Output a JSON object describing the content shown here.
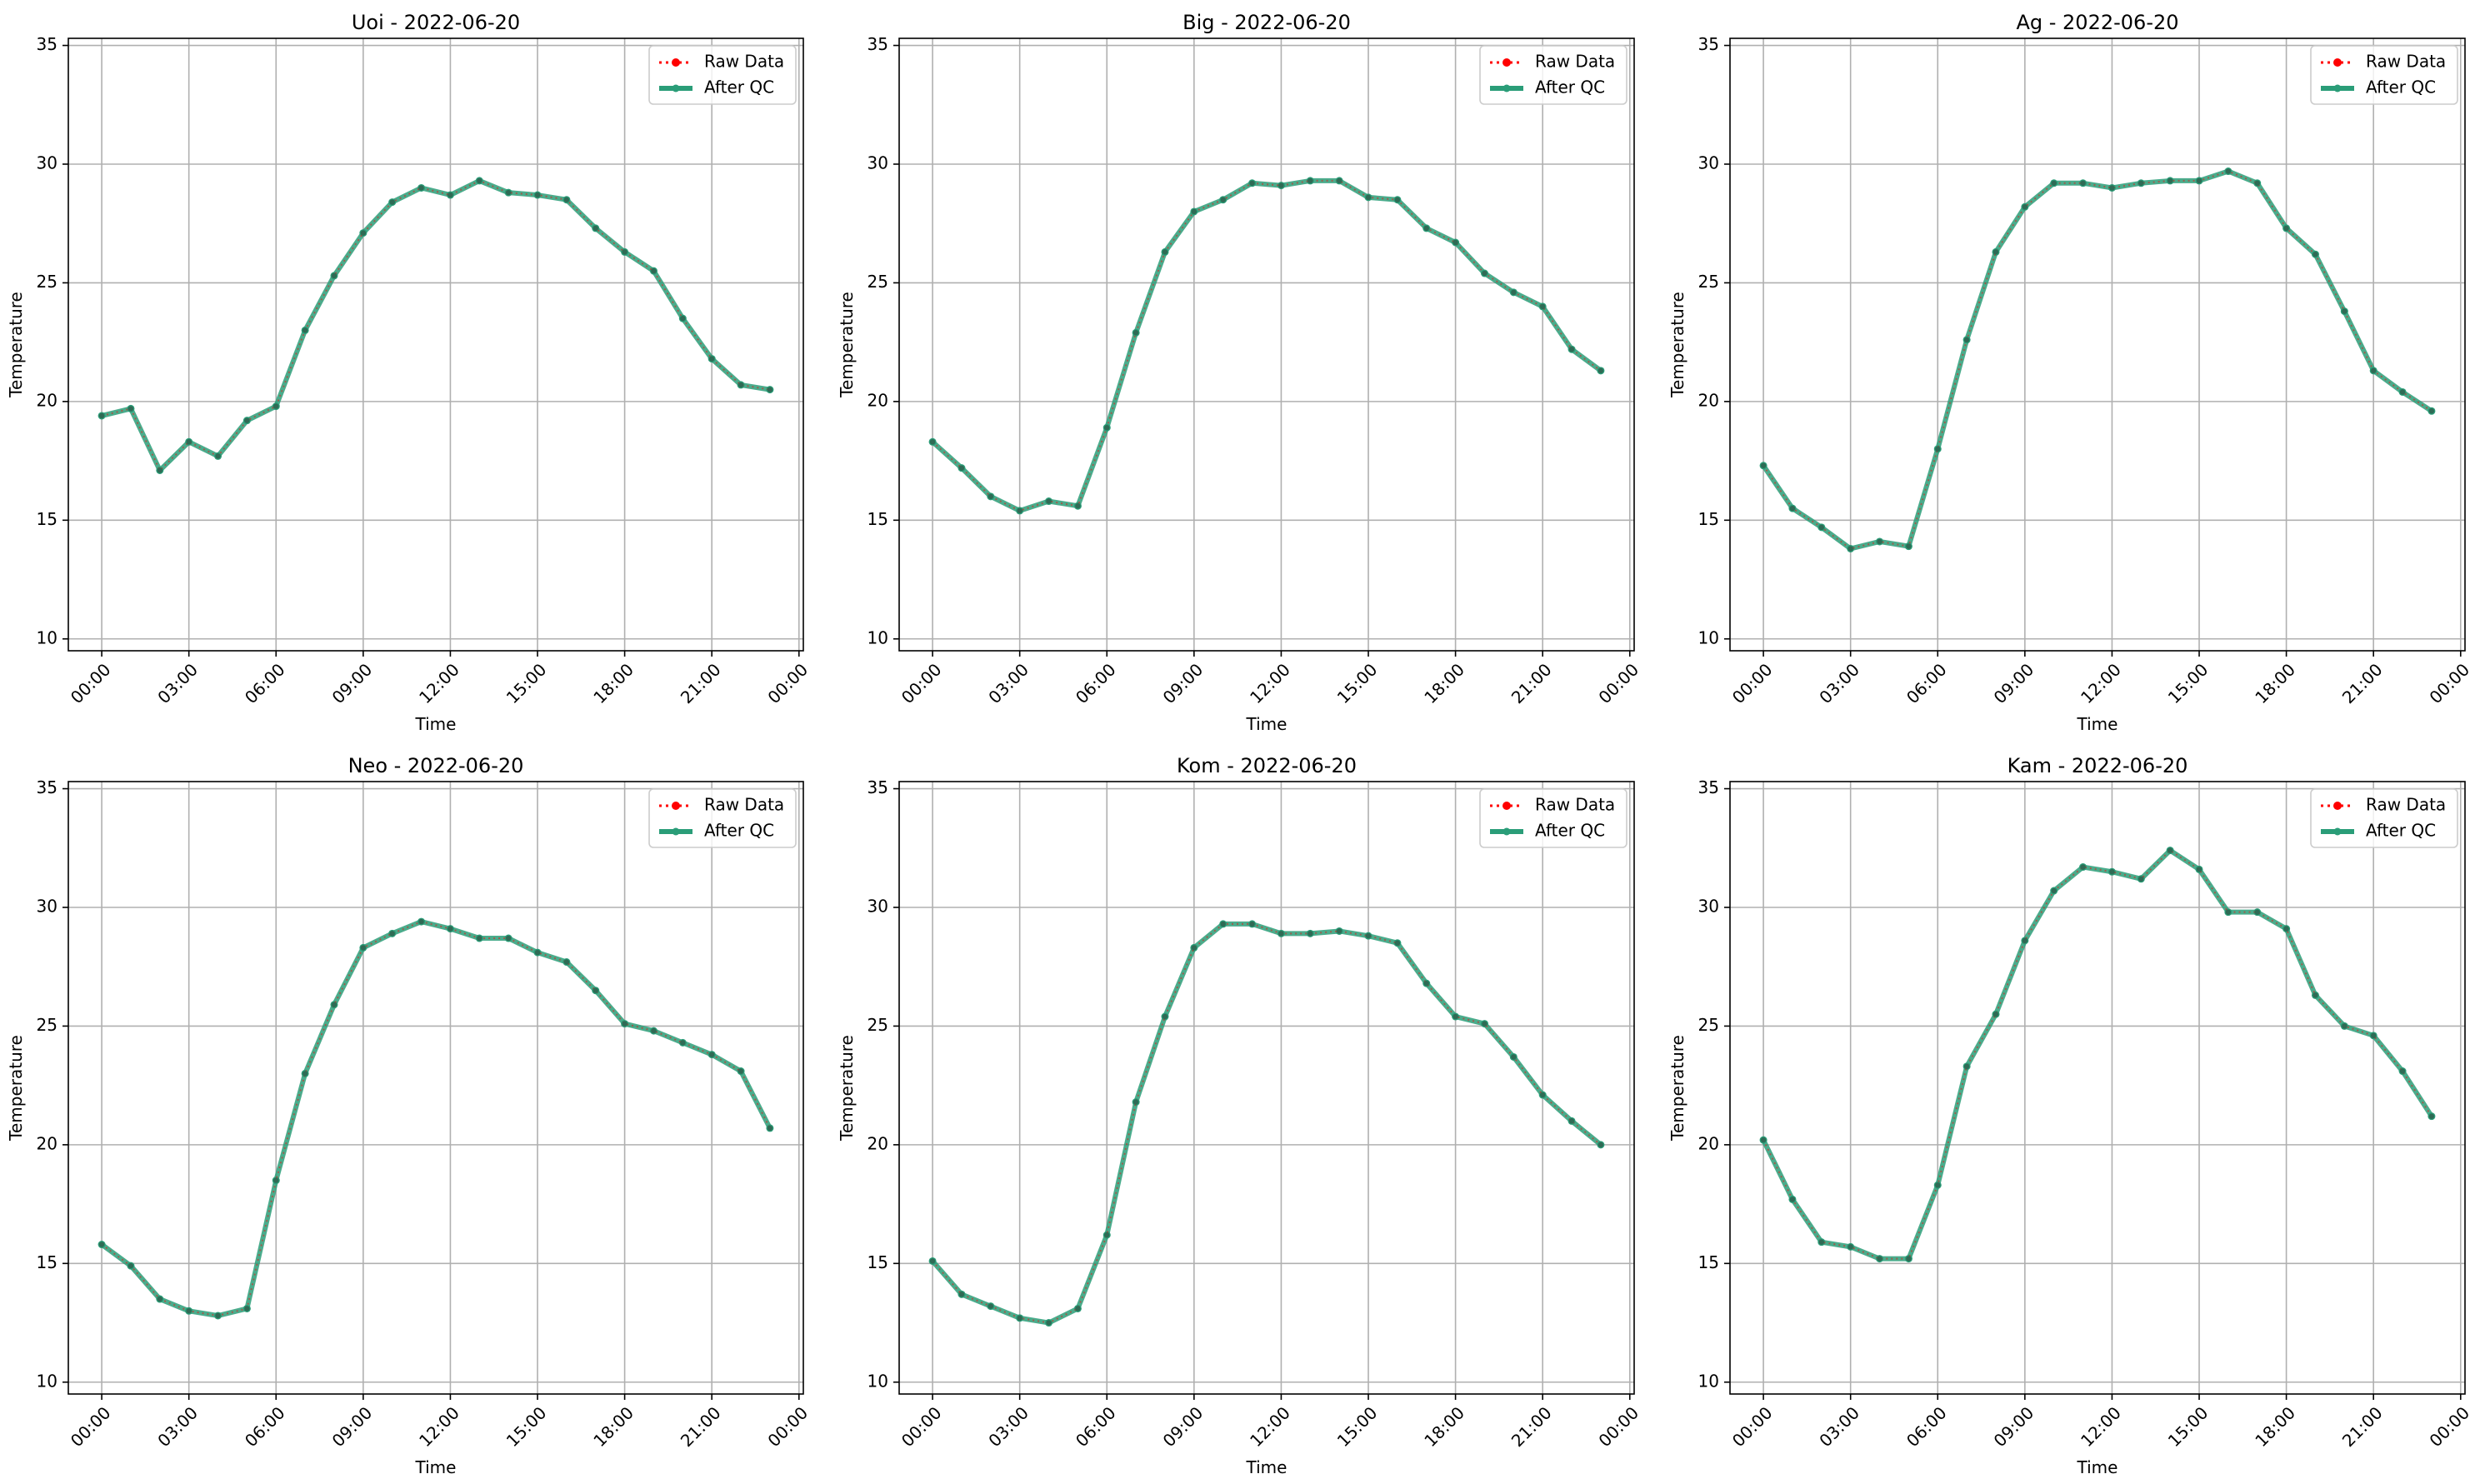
{
  "figure": {
    "colors": {
      "raw_data": "#ff0000",
      "after_qc": "#2a9d78",
      "grid": "#b0b0b0"
    }
  },
  "chart_data": [
    {
      "type": "line",
      "title": "Uoi - 2022-06-20",
      "xlabel": "Time",
      "ylabel": "Temperature",
      "x": [
        "00:00",
        "01:00",
        "02:00",
        "03:00",
        "04:00",
        "05:00",
        "06:00",
        "07:00",
        "08:00",
        "09:00",
        "10:00",
        "11:00",
        "12:00",
        "13:00",
        "14:00",
        "15:00",
        "16:00",
        "17:00",
        "18:00",
        "19:00",
        "20:00",
        "21:00",
        "22:00",
        "23:00"
      ],
      "xtick_labels": [
        "00:00",
        "03:00",
        "06:00",
        "09:00",
        "12:00",
        "15:00",
        "18:00",
        "21:00",
        "00:00"
      ],
      "ylim": [
        9.5,
        35.3
      ],
      "yticks": [
        10,
        15,
        20,
        25,
        30,
        35
      ],
      "grid": true,
      "legend_position": "upper right",
      "series": [
        {
          "name": "Raw Data",
          "values": [
            19.4,
            19.7,
            17.1,
            18.3,
            17.7,
            19.2,
            19.8,
            23.0,
            25.3,
            27.1,
            28.4,
            29.0,
            28.7,
            29.3,
            28.8,
            28.7,
            28.5,
            27.3,
            26.3,
            25.5,
            23.5,
            21.8,
            20.7,
            20.5
          ]
        },
        {
          "name": "After QC",
          "values": [
            19.4,
            19.7,
            17.1,
            18.3,
            17.7,
            19.2,
            19.8,
            23.0,
            25.3,
            27.1,
            28.4,
            29.0,
            28.7,
            29.3,
            28.8,
            28.7,
            28.5,
            27.3,
            26.3,
            25.5,
            23.5,
            21.8,
            20.7,
            20.5
          ]
        }
      ]
    },
    {
      "type": "line",
      "title": "Big - 2022-06-20",
      "xlabel": "Time",
      "ylabel": "Temperature",
      "x": [
        "00:00",
        "01:00",
        "02:00",
        "03:00",
        "04:00",
        "05:00",
        "06:00",
        "07:00",
        "08:00",
        "09:00",
        "10:00",
        "11:00",
        "12:00",
        "13:00",
        "14:00",
        "15:00",
        "16:00",
        "17:00",
        "18:00",
        "19:00",
        "20:00",
        "21:00",
        "22:00",
        "23:00"
      ],
      "xtick_labels": [
        "00:00",
        "03:00",
        "06:00",
        "09:00",
        "12:00",
        "15:00",
        "18:00",
        "21:00",
        "00:00"
      ],
      "ylim": [
        9.5,
        35.3
      ],
      "yticks": [
        10,
        15,
        20,
        25,
        30,
        35
      ],
      "grid": true,
      "legend_position": "upper right",
      "series": [
        {
          "name": "Raw Data",
          "values": [
            18.3,
            17.2,
            16.0,
            15.4,
            15.8,
            15.6,
            18.9,
            22.9,
            26.3,
            28.0,
            28.5,
            29.2,
            29.1,
            29.3,
            29.3,
            28.6,
            28.5,
            27.3,
            26.7,
            25.4,
            24.6,
            24.0,
            22.2,
            21.3
          ]
        },
        {
          "name": "After QC",
          "values": [
            18.3,
            17.2,
            16.0,
            15.4,
            15.8,
            15.6,
            18.9,
            22.9,
            26.3,
            28.0,
            28.5,
            29.2,
            29.1,
            29.3,
            29.3,
            28.6,
            28.5,
            27.3,
            26.7,
            25.4,
            24.6,
            24.0,
            22.2,
            21.3
          ]
        }
      ]
    },
    {
      "type": "line",
      "title": "Ag - 2022-06-20",
      "xlabel": "Time",
      "ylabel": "Temperature",
      "x": [
        "00:00",
        "01:00",
        "02:00",
        "03:00",
        "04:00",
        "05:00",
        "06:00",
        "07:00",
        "08:00",
        "09:00",
        "10:00",
        "11:00",
        "12:00",
        "13:00",
        "14:00",
        "15:00",
        "16:00",
        "17:00",
        "18:00",
        "19:00",
        "20:00",
        "21:00",
        "22:00",
        "23:00"
      ],
      "xtick_labels": [
        "00:00",
        "03:00",
        "06:00",
        "09:00",
        "12:00",
        "15:00",
        "18:00",
        "21:00",
        "00:00"
      ],
      "ylim": [
        9.5,
        35.3
      ],
      "yticks": [
        10,
        15,
        20,
        25,
        30,
        35
      ],
      "grid": true,
      "legend_position": "upper right",
      "series": [
        {
          "name": "Raw Data",
          "values": [
            17.3,
            15.5,
            14.7,
            13.8,
            14.1,
            13.9,
            18.0,
            22.6,
            26.3,
            28.2,
            29.2,
            29.2,
            29.0,
            29.2,
            29.3,
            29.3,
            29.7,
            29.2,
            27.3,
            26.2,
            23.8,
            21.3,
            20.4,
            19.6
          ]
        },
        {
          "name": "After QC",
          "values": [
            17.3,
            15.5,
            14.7,
            13.8,
            14.1,
            13.9,
            18.0,
            22.6,
            26.3,
            28.2,
            29.2,
            29.2,
            29.0,
            29.2,
            29.3,
            29.3,
            29.7,
            29.2,
            27.3,
            26.2,
            23.8,
            21.3,
            20.4,
            19.6
          ]
        }
      ]
    },
    {
      "type": "line",
      "title": "Neo - 2022-06-20",
      "xlabel": "Time",
      "ylabel": "Temperature",
      "x": [
        "00:00",
        "01:00",
        "02:00",
        "03:00",
        "04:00",
        "05:00",
        "06:00",
        "07:00",
        "08:00",
        "09:00",
        "10:00",
        "11:00",
        "12:00",
        "13:00",
        "14:00",
        "15:00",
        "16:00",
        "17:00",
        "18:00",
        "19:00",
        "20:00",
        "21:00",
        "22:00",
        "23:00"
      ],
      "xtick_labels": [
        "00:00",
        "03:00",
        "06:00",
        "09:00",
        "12:00",
        "15:00",
        "18:00",
        "21:00",
        "00:00"
      ],
      "ylim": [
        9.5,
        35.3
      ],
      "yticks": [
        10,
        15,
        20,
        25,
        30,
        35
      ],
      "grid": true,
      "legend_position": "upper right",
      "series": [
        {
          "name": "Raw Data",
          "values": [
            15.8,
            14.9,
            13.5,
            13.0,
            12.8,
            13.1,
            18.5,
            23.0,
            25.9,
            28.3,
            28.9,
            29.4,
            29.1,
            28.7,
            28.7,
            28.1,
            27.7,
            26.5,
            25.1,
            24.8,
            24.3,
            23.8,
            23.1,
            20.7
          ]
        },
        {
          "name": "After QC",
          "values": [
            15.8,
            14.9,
            13.5,
            13.0,
            12.8,
            13.1,
            18.5,
            23.0,
            25.9,
            28.3,
            28.9,
            29.4,
            29.1,
            28.7,
            28.7,
            28.1,
            27.7,
            26.5,
            25.1,
            24.8,
            24.3,
            23.8,
            23.1,
            20.7
          ]
        }
      ]
    },
    {
      "type": "line",
      "title": "Kom - 2022-06-20",
      "xlabel": "Time",
      "ylabel": "Temperature",
      "x": [
        "00:00",
        "01:00",
        "02:00",
        "03:00",
        "04:00",
        "05:00",
        "06:00",
        "07:00",
        "08:00",
        "09:00",
        "10:00",
        "11:00",
        "12:00",
        "13:00",
        "14:00",
        "15:00",
        "16:00",
        "17:00",
        "18:00",
        "19:00",
        "20:00",
        "21:00",
        "22:00",
        "23:00"
      ],
      "xtick_labels": [
        "00:00",
        "03:00",
        "06:00",
        "09:00",
        "12:00",
        "15:00",
        "18:00",
        "21:00",
        "00:00"
      ],
      "ylim": [
        9.5,
        35.3
      ],
      "yticks": [
        10,
        15,
        20,
        25,
        30,
        35
      ],
      "grid": true,
      "legend_position": "upper right",
      "series": [
        {
          "name": "Raw Data",
          "values": [
            15.1,
            13.7,
            13.2,
            12.7,
            12.5,
            13.1,
            16.2,
            21.8,
            25.4,
            28.3,
            29.3,
            29.3,
            28.9,
            28.9,
            29.0,
            28.8,
            28.5,
            26.8,
            25.4,
            25.1,
            23.7,
            22.1,
            21.0,
            20.0
          ]
        },
        {
          "name": "After QC",
          "values": [
            15.1,
            13.7,
            13.2,
            12.7,
            12.5,
            13.1,
            16.2,
            21.8,
            25.4,
            28.3,
            29.3,
            29.3,
            28.9,
            28.9,
            29.0,
            28.8,
            28.5,
            26.8,
            25.4,
            25.1,
            23.7,
            22.1,
            21.0,
            20.0
          ]
        }
      ]
    },
    {
      "type": "line",
      "title": "Kam - 2022-06-20",
      "xlabel": "Time",
      "ylabel": "Temperature",
      "x": [
        "00:00",
        "01:00",
        "02:00",
        "03:00",
        "04:00",
        "05:00",
        "06:00",
        "07:00",
        "08:00",
        "09:00",
        "10:00",
        "11:00",
        "12:00",
        "13:00",
        "14:00",
        "15:00",
        "16:00",
        "17:00",
        "18:00",
        "19:00",
        "20:00",
        "21:00",
        "22:00",
        "23:00"
      ],
      "xtick_labels": [
        "00:00",
        "03:00",
        "06:00",
        "09:00",
        "12:00",
        "15:00",
        "18:00",
        "21:00",
        "00:00"
      ],
      "ylim": [
        9.5,
        35.3
      ],
      "yticks": [
        10,
        15,
        20,
        25,
        30,
        35
      ],
      "grid": true,
      "legend_position": "upper right",
      "series": [
        {
          "name": "Raw Data",
          "values": [
            20.2,
            17.7,
            15.9,
            15.7,
            15.2,
            15.2,
            18.3,
            23.3,
            25.5,
            28.6,
            30.7,
            31.7,
            31.5,
            31.2,
            32.4,
            31.6,
            29.8,
            29.8,
            29.1,
            26.3,
            25.0,
            24.6,
            23.1,
            21.2
          ]
        },
        {
          "name": "After QC",
          "values": [
            20.2,
            17.7,
            15.9,
            15.7,
            15.2,
            15.2,
            18.3,
            23.3,
            25.5,
            28.6,
            30.7,
            31.7,
            31.5,
            31.2,
            32.4,
            31.6,
            29.8,
            29.8,
            29.1,
            26.3,
            25.0,
            24.6,
            23.1,
            21.2
          ]
        }
      ]
    }
  ]
}
